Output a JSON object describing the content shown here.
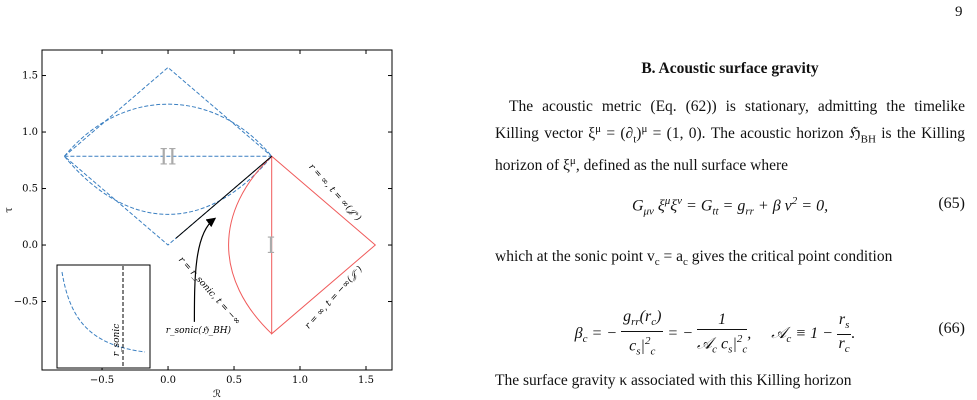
{
  "page_number": "9",
  "figure": {
    "xlim": [
      -0.955,
      1.697
    ],
    "ylim": [
      -1.106,
      1.726
    ],
    "xticks": [
      {
        "value": -0.5,
        "label": "−0.5"
      },
      {
        "value": 0,
        "label": "0.0"
      },
      {
        "value": 0.5,
        "label": "0.5"
      },
      {
        "value": 1,
        "label": "1.0"
      },
      {
        "value": 1.5,
        "label": "1.5"
      }
    ],
    "yticks": [
      {
        "value": -0.5,
        "label": "−0.5"
      },
      {
        "value": 0,
        "label": "0.0"
      },
      {
        "value": 0.5,
        "label": "0.5"
      },
      {
        "value": 1,
        "label": "1.0"
      },
      {
        "value": 1.5,
        "label": "1.5"
      }
    ],
    "xlabel": "ℛ",
    "ylabel": "τ",
    "region_2": "II",
    "region_1": "I",
    "label_scri_plus": "r = ∞, t = ∞(𝒥⁺)",
    "label_scri_minus": "r = ∞, t = −∞(𝒥⁻)",
    "label_sonic": "r = r_sonic, t = −∞",
    "label_horizon": "r_sonic(ℌ_BH)",
    "inset_label": "r_sonic"
  },
  "section": {
    "heading": "B.    Acoustic surface gravity"
  },
  "para1": {
    "runs": [
      "The acoustic metric (Eq. (62)) is stationary, admitting the timelike Killing vector ξ",
      "μ",
      " = (∂",
      "t",
      ")",
      "μ",
      " = (1, 0).  The acoustic horizon ℌ",
      "BH",
      " is the Killing horizon of ξ",
      "μ",
      ", defined as the null surface where"
    ]
  },
  "eq65": {
    "runs": [
      "G",
      "μν",
      " ξ",
      "μ",
      "ξ",
      "ν",
      " = G",
      "tt",
      " = g",
      "rr",
      " + β v",
      "2",
      " = 0,"
    ],
    "number": "(65)"
  },
  "para2": {
    "runs": [
      "which at the sonic point v",
      "c",
      " = a",
      "c",
      " gives the critical point condition"
    ]
  },
  "eq66": {
    "runs": [
      "β",
      "c",
      " = −",
      "g",
      "rr",
      "(r",
      "c",
      ")",
      "c",
      "s",
      "|",
      "2",
      "c",
      " = −",
      "1",
      "𝒜",
      "c",
      " c",
      "s",
      "|",
      "2",
      "c",
      ",",
      "𝒜",
      "c",
      " ≡ 1 − ",
      "r",
      "s",
      "r",
      "c",
      "."
    ],
    "number": "(66)"
  },
  "para3": {
    "runs": [
      "The surface gravity κ associated with this Killing horizon"
    ]
  }
}
